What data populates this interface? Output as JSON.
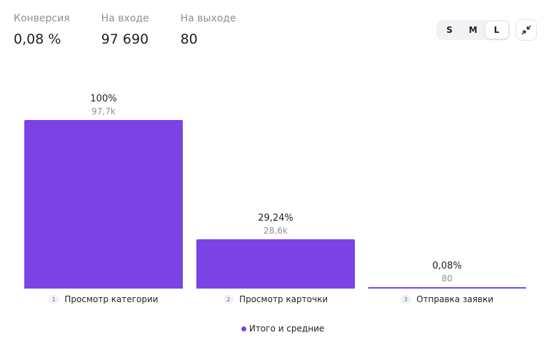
{
  "stats": [
    {
      "label": "Конверсия",
      "value": "0,08 %"
    },
    {
      "label": "На входе",
      "value": "97 690"
    },
    {
      "label": "На выходе",
      "value": "80"
    }
  ],
  "size_switch": {
    "options": [
      "S",
      "M",
      "L"
    ],
    "selected": "L"
  },
  "icons": {
    "collapse": "collapse-arrows-icon"
  },
  "colors": {
    "bar": "#7b43e6",
    "muted_text": "#8a8f99"
  },
  "chart_data": {
    "type": "bar",
    "categories": [
      "Просмотр категории",
      "Просмотр карточки",
      "Отправка заявки"
    ],
    "step_numbers": [
      "1",
      "2",
      "3"
    ],
    "values": [
      97690,
      28564,
      80
    ],
    "percent_labels": [
      "100%",
      "29,24%",
      "0,08%"
    ],
    "value_labels": [
      "97,7k",
      "28,6k",
      "80"
    ],
    "ylim": [
      0,
      97690
    ],
    "grid": false,
    "legend": {
      "placement": "bottom-center",
      "entries": [
        {
          "name": "Итого и средние",
          "color": "#7b43e6"
        }
      ]
    },
    "series": [
      {
        "name": "Итого и средние",
        "values": [
          97690,
          28564,
          80
        ]
      }
    ]
  }
}
